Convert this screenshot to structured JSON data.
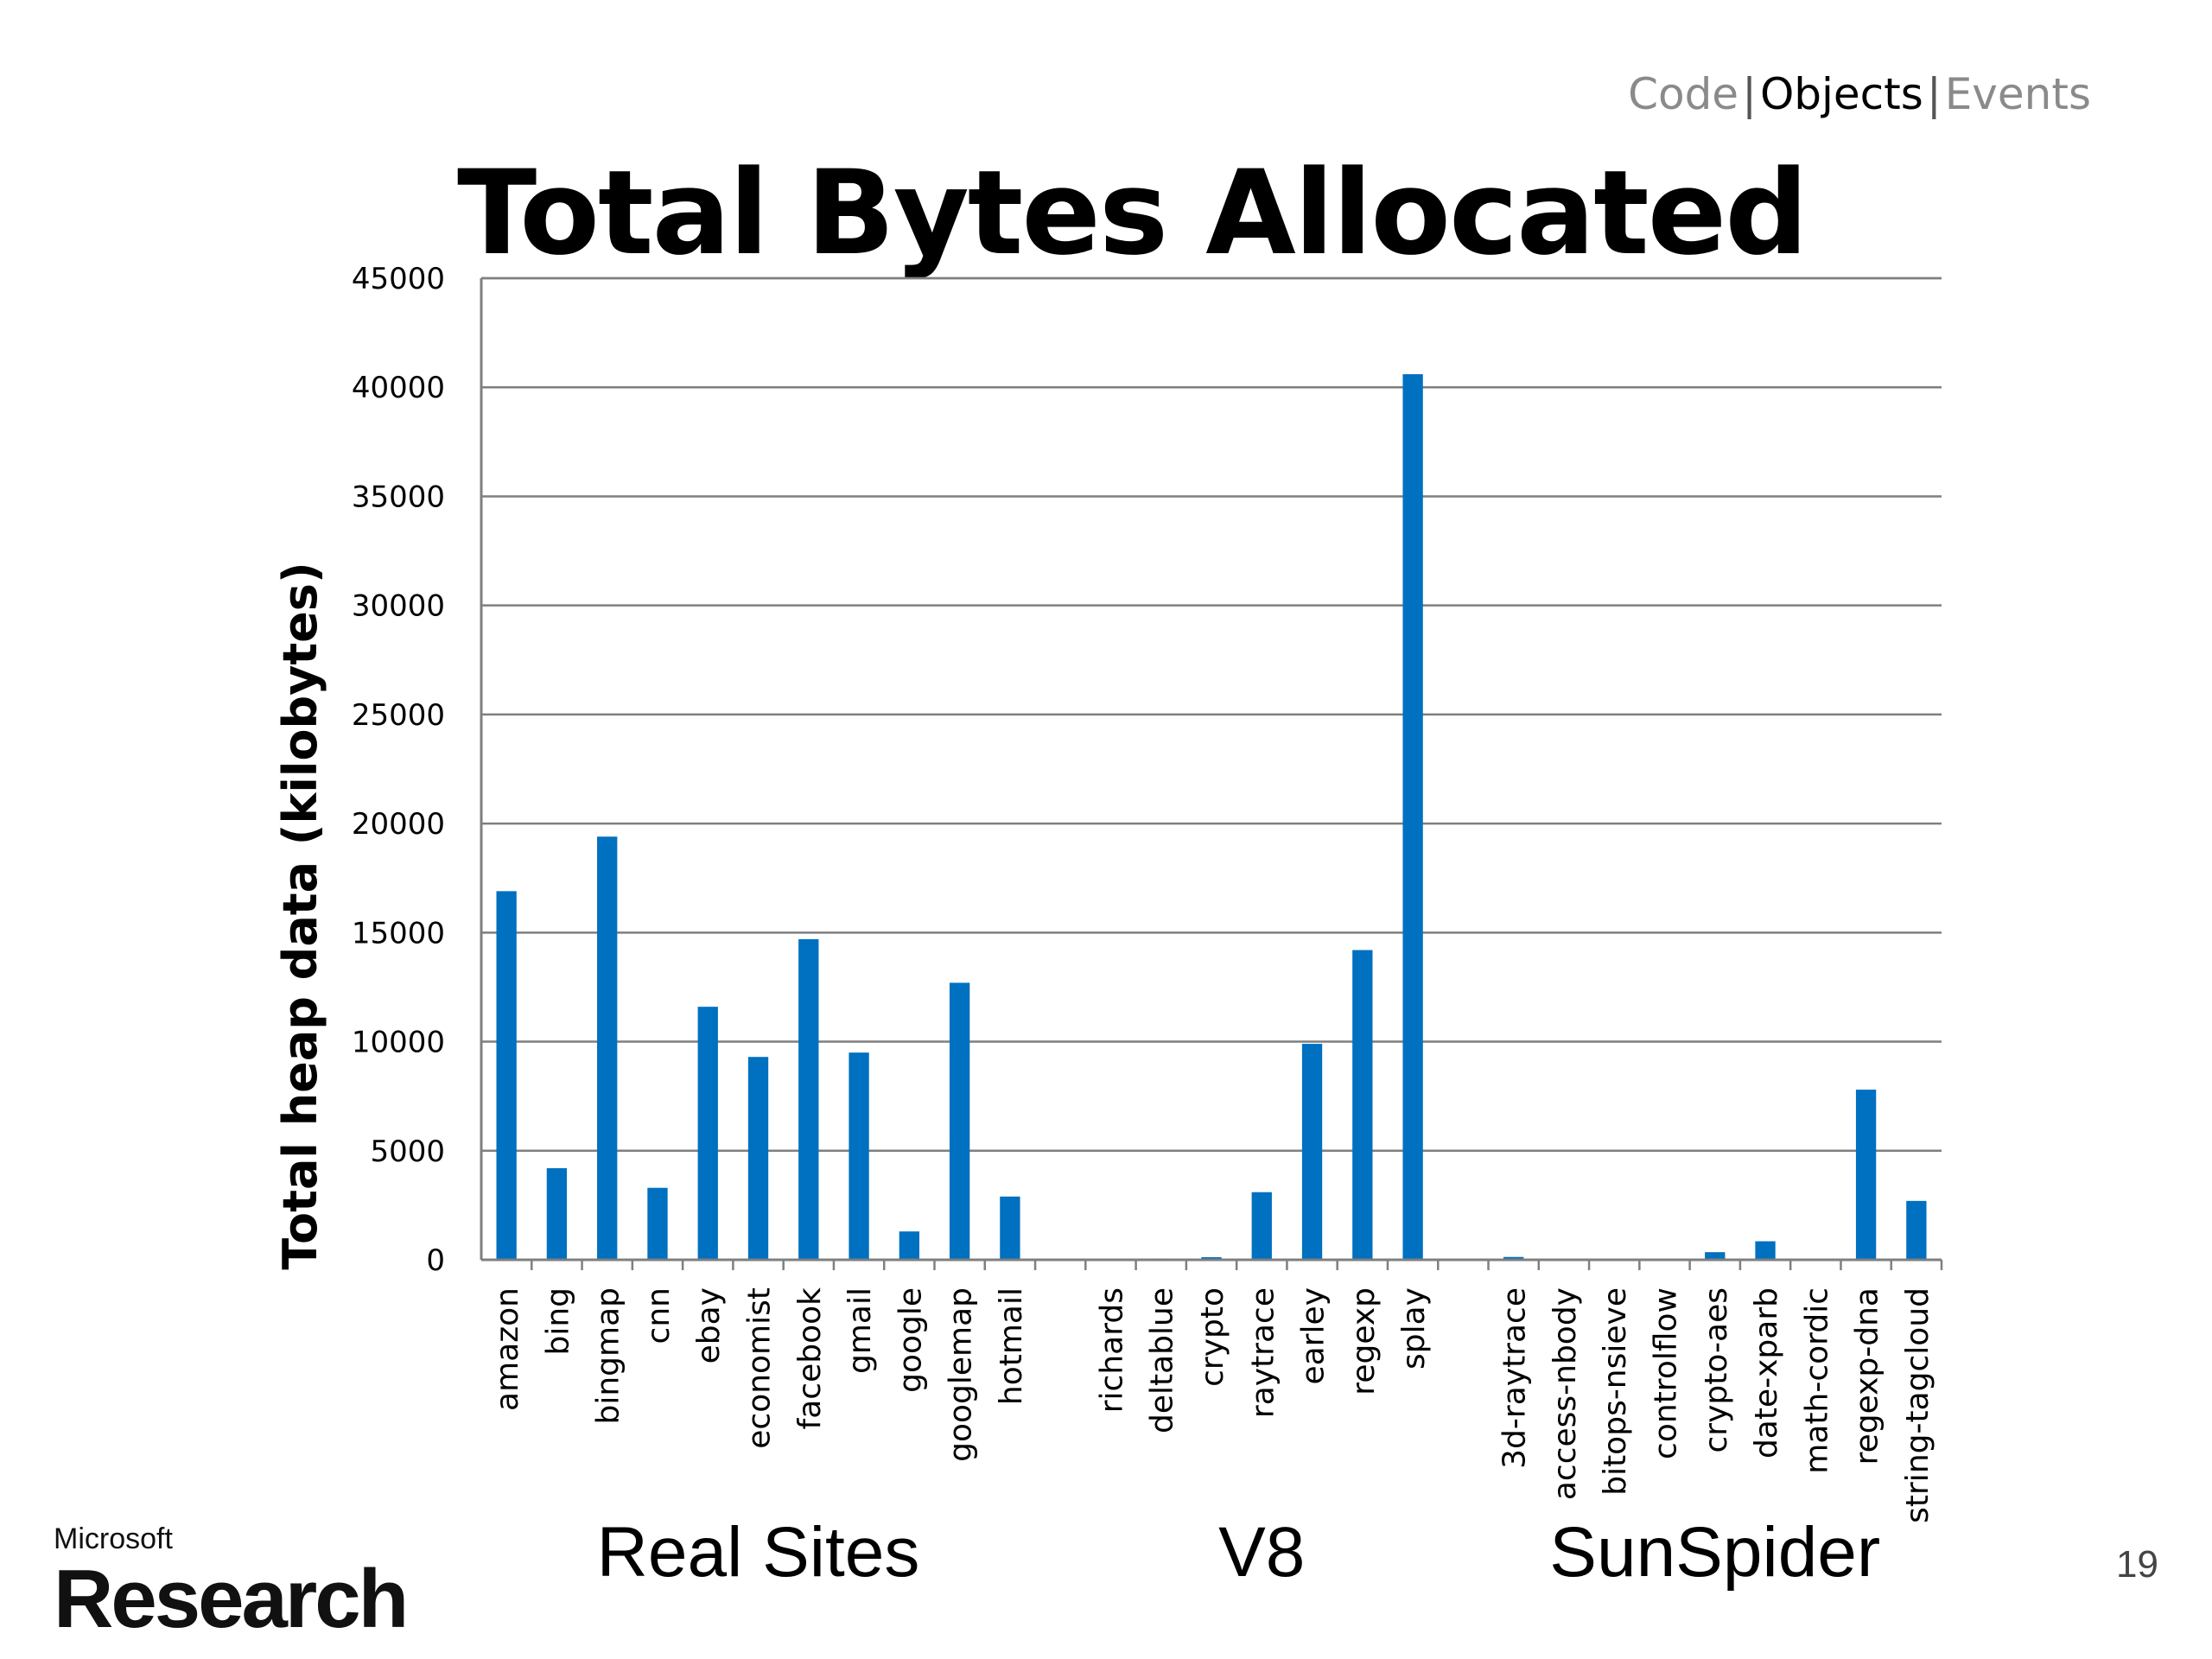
{
  "nav": {
    "items": [
      "Code",
      "Objects",
      "Events"
    ],
    "active_index": 1
  },
  "page_number": "19",
  "logo": {
    "top": "Microsoft",
    "bottom": "Research"
  },
  "colors": {
    "bar": "#0070c0",
    "grid": "#7f7f7f"
  },
  "chart_data": {
    "type": "bar",
    "title": "Total Bytes Allocated",
    "ylabel": "Total heap data (kilobytes)",
    "xlabel": "",
    "ylim": [
      0,
      45000
    ],
    "yticks": [
      0,
      5000,
      10000,
      15000,
      20000,
      25000,
      30000,
      35000,
      40000,
      45000
    ],
    "grid": true,
    "groups": [
      {
        "label": "Real Sites",
        "categories": [
          "amazon",
          "bing",
          "bingmap",
          "cnn",
          "ebay",
          "economist",
          "facebook",
          "gmail",
          "google",
          "googlemap",
          "hotmail"
        ],
        "values": [
          16900,
          4200,
          19400,
          3300,
          11600,
          9300,
          14700,
          9500,
          1300,
          12700,
          2900
        ]
      },
      {
        "label": "V8",
        "categories": [
          "richards",
          "deltablue",
          "crypto",
          "raytrace",
          "earley",
          "regexp",
          "splay"
        ],
        "values": [
          0,
          60,
          120,
          3100,
          9900,
          14200,
          40600
        ]
      },
      {
        "label": "SunSpider",
        "categories": [
          "3d-raytrace",
          "access-nbody",
          "bitops-nsieve",
          "controlflow",
          "crypto-aes",
          "date-xparb",
          "math-cordic",
          "regexp-dna",
          "string-tagcloud"
        ],
        "values": [
          130,
          0,
          0,
          0,
          350,
          850,
          0,
          7800,
          2700
        ]
      }
    ]
  }
}
